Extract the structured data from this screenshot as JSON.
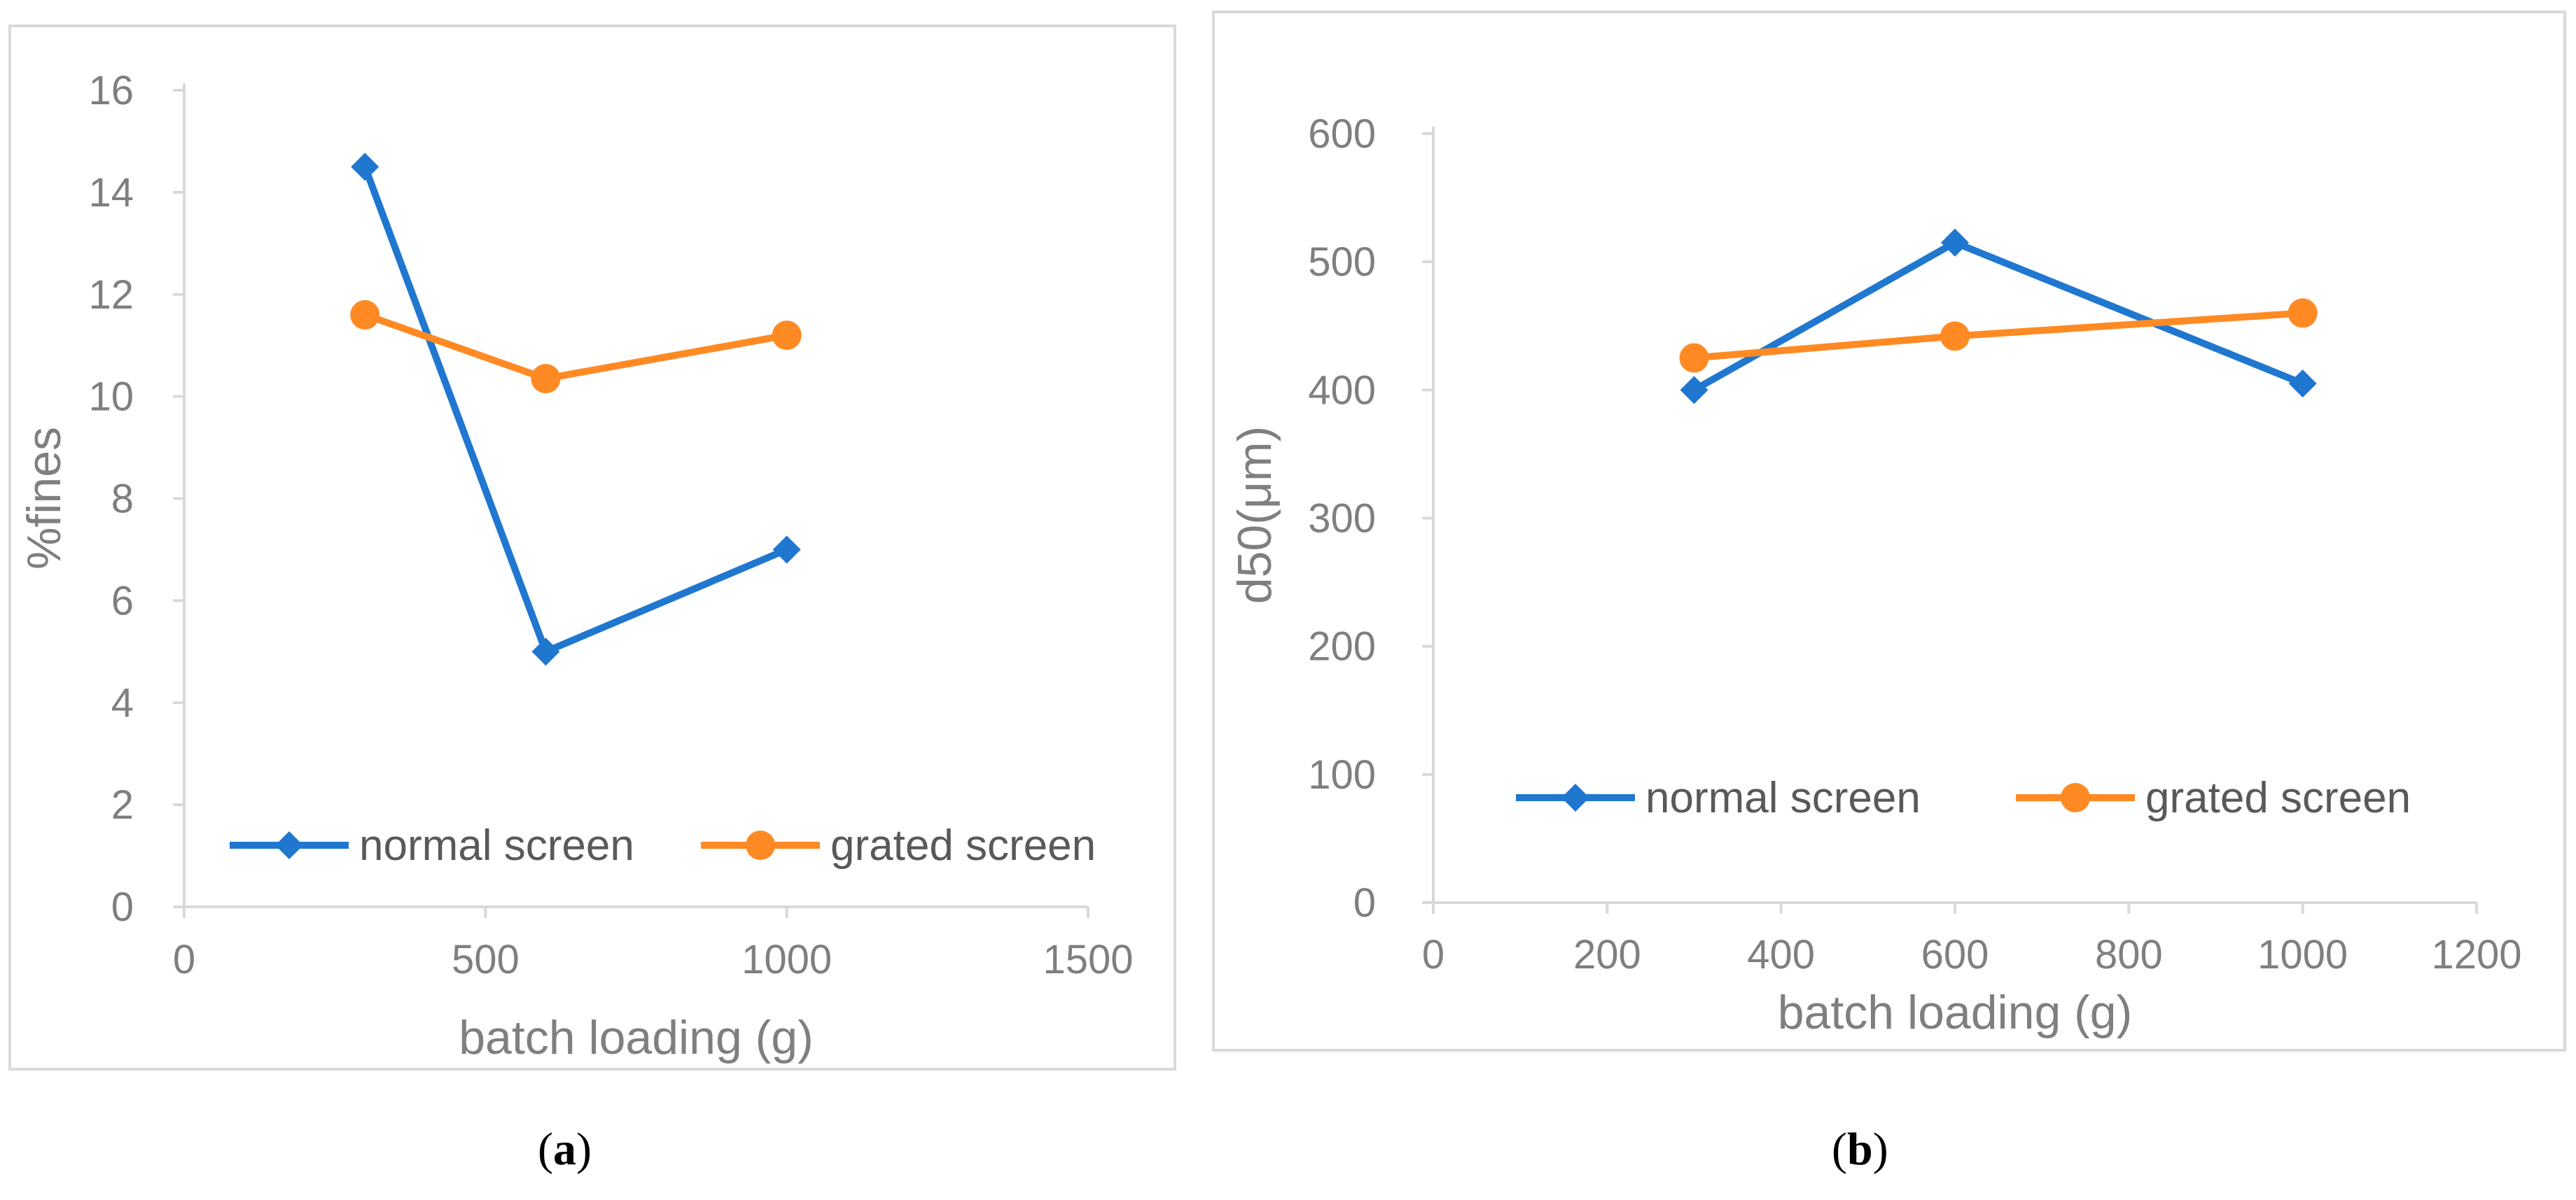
{
  "chart_data": [
    {
      "panel_label": "a",
      "type": "line",
      "title": "",
      "xlabel": "batch loading (g)",
      "ylabel": "%fines",
      "xlim": [
        0,
        1500
      ],
      "ylim": [
        0,
        16
      ],
      "xticks": [
        0,
        500,
        1000,
        1500
      ],
      "yticks": [
        0,
        2,
        4,
        6,
        8,
        10,
        12,
        14,
        16
      ],
      "grid": false,
      "legend_position": "bottom",
      "series": [
        {
          "name": "normal screen",
          "color": "#1f77d0",
          "marker": "diamond",
          "x": [
            300,
            600,
            1000
          ],
          "y": [
            14.5,
            5.0,
            7.0
          ]
        },
        {
          "name": "grated screen",
          "color": "#ff8a24",
          "marker": "circle",
          "x": [
            300,
            600,
            1000
          ],
          "y": [
            11.6,
            10.35,
            11.2
          ]
        }
      ]
    },
    {
      "panel_label": "b",
      "type": "line",
      "title": "",
      "xlabel": "batch loading (g)",
      "ylabel": "d50(μm)",
      "xlim": [
        0,
        1200
      ],
      "ylim": [
        0,
        600
      ],
      "xticks": [
        0,
        200,
        400,
        600,
        800,
        1000,
        1200
      ],
      "yticks": [
        0,
        100,
        200,
        300,
        400,
        500,
        600
      ],
      "grid": false,
      "legend_position": "center",
      "series": [
        {
          "name": "normal screen",
          "color": "#1f77d0",
          "marker": "diamond",
          "x": [
            300,
            600,
            1000
          ],
          "y": [
            400,
            515,
            405
          ]
        },
        {
          "name": "grated screen",
          "color": "#ff8a24",
          "marker": "circle",
          "x": [
            300,
            600,
            1000
          ],
          "y": [
            425,
            442,
            460
          ]
        }
      ]
    }
  ],
  "captions": {
    "a": {
      "open": "(",
      "label": "a",
      "close": ")"
    },
    "b": {
      "open": "(",
      "label": "b",
      "close": ")"
    }
  }
}
